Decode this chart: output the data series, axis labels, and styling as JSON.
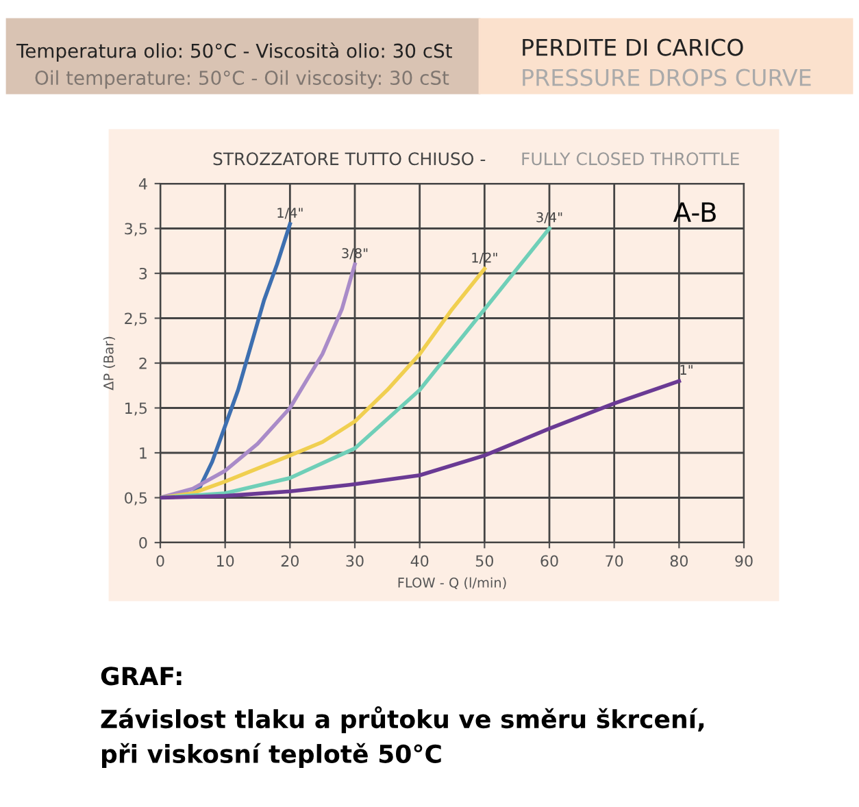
{
  "chart_data": {
    "type": "line",
    "title": "STROZZATORE TUTTO CHIUSO -",
    "subtitle": "FULLY CLOSED THROTTLE",
    "xlabel": "FLOW - Q (l/min)",
    "ylabel": "ΔP (Bar)",
    "series": [
      {
        "name": "1/4\"",
        "color": "#3d6fb0",
        "x": [
          0,
          5,
          6,
          8,
          10,
          12,
          14,
          16,
          18,
          20
        ],
        "values": [
          0.5,
          0.55,
          0.6,
          0.9,
          1.3,
          1.7,
          2.2,
          2.7,
          3.1,
          3.55
        ]
      },
      {
        "name": "3/8\"",
        "color": "#a98bc8",
        "x": [
          0,
          5,
          10,
          15,
          20,
          25,
          28,
          30
        ],
        "values": [
          0.5,
          0.6,
          0.8,
          1.1,
          1.5,
          2.1,
          2.6,
          3.1
        ]
      },
      {
        "name": "1/2\"",
        "color": "#f0cf50",
        "x": [
          0,
          5,
          10,
          20,
          25,
          30,
          35,
          40,
          45,
          50
        ],
        "values": [
          0.5,
          0.55,
          0.68,
          0.97,
          1.12,
          1.35,
          1.7,
          2.1,
          2.6,
          3.05
        ]
      },
      {
        "name": "3/4\"",
        "color": "#6fcfb8",
        "x": [
          0,
          10,
          20,
          30,
          40,
          50,
          60
        ],
        "values": [
          0.5,
          0.55,
          0.72,
          1.05,
          1.7,
          2.6,
          3.5
        ]
      },
      {
        "name": "1\"",
        "color": "#6a3a94",
        "x": [
          0,
          10,
          20,
          30,
          40,
          50,
          60,
          70,
          80
        ],
        "values": [
          0.5,
          0.52,
          0.57,
          0.65,
          0.75,
          0.97,
          1.27,
          1.55,
          1.8
        ]
      }
    ],
    "xlim": [
      0,
      90
    ],
    "xticks": [
      0,
      10,
      20,
      30,
      40,
      50,
      60,
      70,
      80,
      90
    ],
    "ylim": [
      0,
      4
    ],
    "yticks": [
      0,
      {
        "value": 0.5,
        "label": "0,5"
      },
      1,
      {
        "value": 1.5,
        "label": "1,5"
      },
      2,
      {
        "value": 2.5,
        "label": "2,5"
      },
      3,
      {
        "value": 3.5,
        "label": "3,5"
      },
      4
    ],
    "grid": true,
    "legend": false,
    "marker": "none",
    "line_style": "solid",
    "annotations": [
      "Temperatura olio: 50°C - Viscosità olio: 30 cSt",
      "Oil temperature: 50°C - Oil viscosity: 30 cSt",
      "PERDITE DI CARICO",
      "PRESSURE DROPS CURVE",
      "A-B",
      "GRAF:",
      "Závislost tlaku a průtoku ve směru škrcení,\npři viskosní teplotě 50°C"
    ]
  }
}
